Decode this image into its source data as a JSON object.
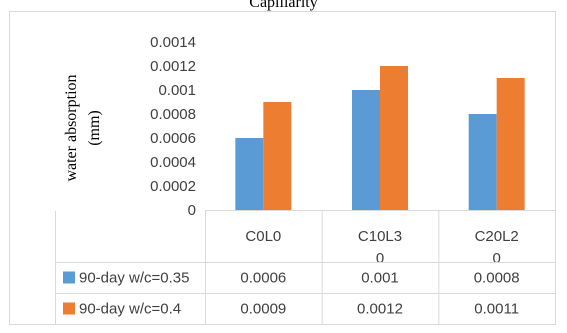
{
  "caption": "Capillarity",
  "chart_data": {
    "type": "bar",
    "ylabel": [
      "water absorption",
      "(mm)"
    ],
    "ylim": [
      0,
      0.0014
    ],
    "yticks": [
      "0",
      "0.0002",
      "0.0004",
      "0.0006",
      "0.0008",
      "0.001",
      "0.0012",
      "0.0014"
    ],
    "categories": [
      [
        "C0L0"
      ],
      [
        "C10L3",
        "0"
      ],
      [
        "C20L2",
        "0"
      ]
    ],
    "series": [
      {
        "name": "90-day w/c=0.35",
        "color": "#5b9bd5",
        "values": [
          0.0006,
          0.001,
          0.0008
        ],
        "labels": [
          "0.0006",
          "0.001",
          "0.0008"
        ]
      },
      {
        "name": "90-day w/c=0.4",
        "color": "#ed7d31",
        "values": [
          0.0009,
          0.0012,
          0.0011
        ],
        "labels": [
          "0.0009",
          "0.0012",
          "0.0011"
        ]
      }
    ],
    "grid": false,
    "data_table": true
  }
}
